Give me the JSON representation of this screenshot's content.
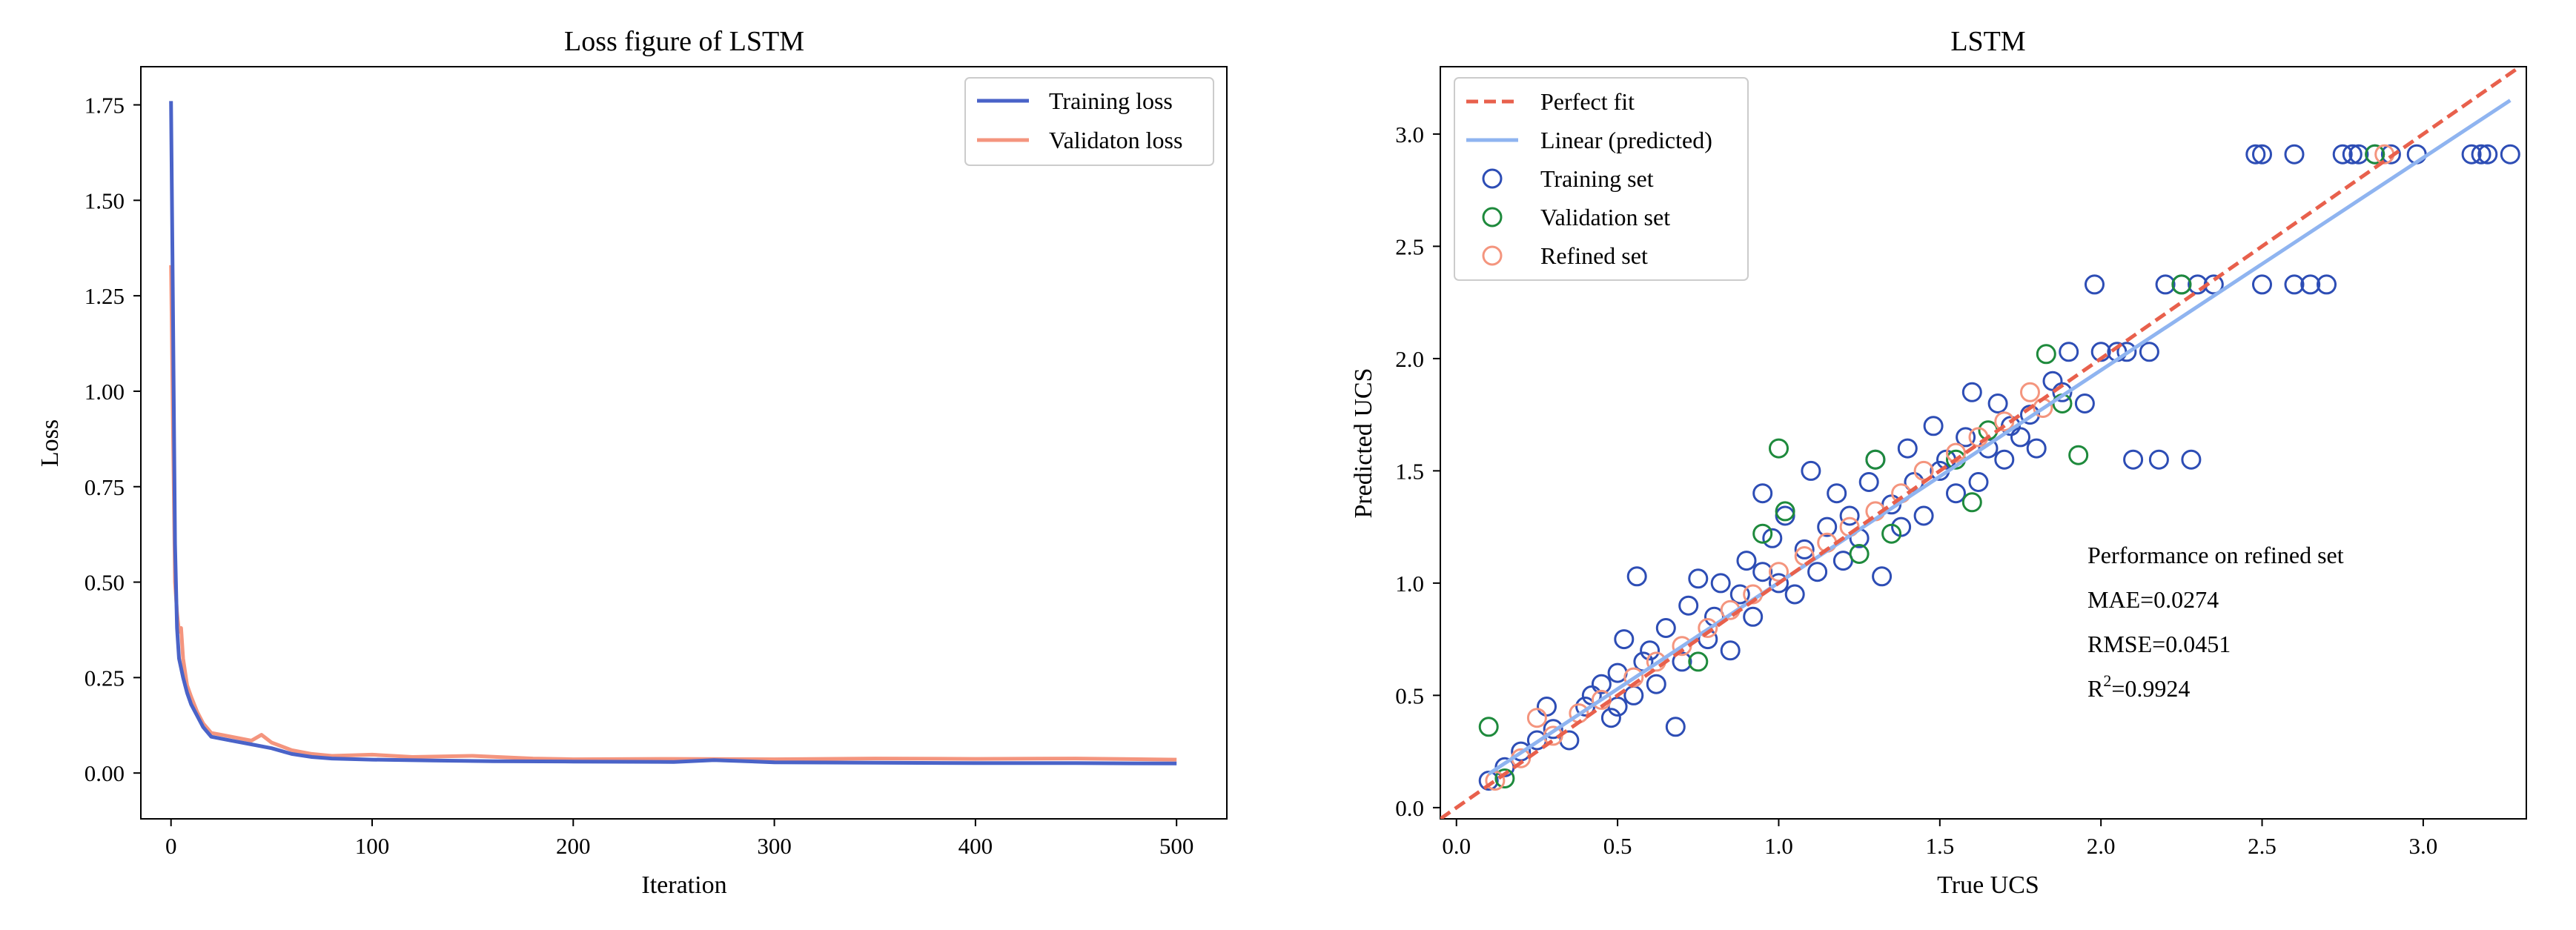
{
  "chart_data": [
    {
      "type": "line",
      "title": "Loss figure of LSTM",
      "xlabel": "Iteration",
      "ylabel": "Loss",
      "xlim": [
        -15,
        525
      ],
      "ylim": [
        -0.12,
        1.85
      ],
      "xticks": [
        0,
        100,
        200,
        300,
        400,
        500
      ],
      "xtick_labels": [
        "0",
        "100",
        "200",
        "300",
        "400",
        "500"
      ],
      "yticks": [
        0.0,
        0.25,
        0.5,
        0.75,
        1.0,
        1.25,
        1.5,
        1.75
      ],
      "ytick_labels": [
        "0.00",
        "0.25",
        "0.50",
        "0.75",
        "1.00",
        "1.25",
        "1.50",
        "1.75"
      ],
      "grid": false,
      "legend_position": "top-right",
      "series": [
        {
          "name": "Training loss",
          "color": "#4a63c8",
          "points": [
            [
              0,
              1.76
            ],
            [
              1,
              1.2
            ],
            [
              2,
              0.6
            ],
            [
              3,
              0.38
            ],
            [
              4,
              0.3
            ],
            [
              6,
              0.25
            ],
            [
              8,
              0.21
            ],
            [
              10,
              0.18
            ],
            [
              13,
              0.15
            ],
            [
              16,
              0.12
            ],
            [
              20,
              0.095
            ],
            [
              25,
              0.09
            ],
            [
              30,
              0.085
            ],
            [
              40,
              0.075
            ],
            [
              50,
              0.065
            ],
            [
              60,
              0.05
            ],
            [
              70,
              0.042
            ],
            [
              80,
              0.038
            ],
            [
              100,
              0.035
            ],
            [
              130,
              0.033
            ],
            [
              160,
              0.031
            ],
            [
              200,
              0.03
            ],
            [
              250,
              0.029
            ],
            [
              270,
              0.034
            ],
            [
              300,
              0.028
            ],
            [
              350,
              0.027
            ],
            [
              400,
              0.026
            ],
            [
              450,
              0.026
            ],
            [
              500,
              0.025
            ]
          ]
        },
        {
          "name": "Validaton loss",
          "color": "#f4957e",
          "points": [
            [
              0,
              1.33
            ],
            [
              1,
              0.9
            ],
            [
              2,
              0.5
            ],
            [
              3,
              0.42
            ],
            [
              4,
              0.37
            ],
            [
              5,
              0.38
            ],
            [
              6,
              0.3
            ],
            [
              8,
              0.23
            ],
            [
              10,
              0.2
            ],
            [
              13,
              0.16
            ],
            [
              16,
              0.13
            ],
            [
              20,
              0.105
            ],
            [
              25,
              0.1
            ],
            [
              30,
              0.095
            ],
            [
              40,
              0.085
            ],
            [
              45,
              0.1
            ],
            [
              50,
              0.08
            ],
            [
              60,
              0.06
            ],
            [
              70,
              0.05
            ],
            [
              80,
              0.045
            ],
            [
              100,
              0.048
            ],
            [
              120,
              0.042
            ],
            [
              150,
              0.045
            ],
            [
              180,
              0.038
            ],
            [
              200,
              0.036
            ],
            [
              250,
              0.037
            ],
            [
              300,
              0.036
            ],
            [
              350,
              0.038
            ],
            [
              400,
              0.037
            ],
            [
              450,
              0.038
            ],
            [
              500,
              0.035
            ]
          ]
        }
      ]
    },
    {
      "type": "scatter",
      "title": "LSTM",
      "xlabel": "True UCS",
      "ylabel": "Predicted UCS",
      "xlim": [
        -0.05,
        3.32
      ],
      "ylim": [
        -0.05,
        3.3
      ],
      "xticks": [
        0.0,
        0.5,
        1.0,
        1.5,
        2.0,
        2.5,
        3.0
      ],
      "xtick_labels": [
        "0.0",
        "0.5",
        "1.0",
        "1.5",
        "2.0",
        "2.5",
        "3.0"
      ],
      "yticks": [
        0.0,
        0.5,
        1.0,
        1.5,
        2.0,
        2.5,
        3.0
      ],
      "ytick_labels": [
        "0.0",
        "0.5",
        "1.0",
        "1.5",
        "2.0",
        "2.5",
        "3.0"
      ],
      "grid": false,
      "legend_position": "top-left",
      "lines": [
        {
          "name": "Perfect fit",
          "color": "#e8604c",
          "style": "dashed",
          "points": [
            [
              -0.05,
              -0.05
            ],
            [
              3.3,
              3.3
            ]
          ]
        },
        {
          "name": "Linear (predicted)",
          "color": "#8fb4f0",
          "style": "solid",
          "points": [
            [
              0.1,
              0.15
            ],
            [
              3.27,
              3.15
            ]
          ]
        }
      ],
      "series": [
        {
          "name": "Training set",
          "color": "#2d4db5",
          "marker": "open-circle",
          "points": [
            [
              0.1,
              0.12
            ],
            [
              0.15,
              0.18
            ],
            [
              0.2,
              0.25
            ],
            [
              0.25,
              0.3
            ],
            [
              0.28,
              0.45
            ],
            [
              0.3,
              0.35
            ],
            [
              0.35,
              0.3
            ],
            [
              0.4,
              0.45
            ],
            [
              0.42,
              0.5
            ],
            [
              0.45,
              0.55
            ],
            [
              0.48,
              0.4
            ],
            [
              0.5,
              0.6
            ],
            [
              0.5,
              0.45
            ],
            [
              0.52,
              0.75
            ],
            [
              0.55,
              0.5
            ],
            [
              0.56,
              1.03
            ],
            [
              0.58,
              0.65
            ],
            [
              0.6,
              0.7
            ],
            [
              0.62,
              0.55
            ],
            [
              0.65,
              0.8
            ],
            [
              0.68,
              0.36
            ],
            [
              0.7,
              0.65
            ],
            [
              0.72,
              0.9
            ],
            [
              0.75,
              1.02
            ],
            [
              0.78,
              0.75
            ],
            [
              0.8,
              0.85
            ],
            [
              0.82,
              1.0
            ],
            [
              0.85,
              0.7
            ],
            [
              0.88,
              0.95
            ],
            [
              0.9,
              1.1
            ],
            [
              0.92,
              0.85
            ],
            [
              0.95,
              1.05
            ],
            [
              0.95,
              1.4
            ],
            [
              0.98,
              1.2
            ],
            [
              1.0,
              1.0
            ],
            [
              1.02,
              1.3
            ],
            [
              1.05,
              0.95
            ],
            [
              1.08,
              1.15
            ],
            [
              1.1,
              1.5
            ],
            [
              1.12,
              1.05
            ],
            [
              1.15,
              1.25
            ],
            [
              1.18,
              1.4
            ],
            [
              1.2,
              1.1
            ],
            [
              1.22,
              1.3
            ],
            [
              1.25,
              1.2
            ],
            [
              1.28,
              1.45
            ],
            [
              1.3,
              1.55
            ],
            [
              1.32,
              1.03
            ],
            [
              1.35,
              1.35
            ],
            [
              1.38,
              1.25
            ],
            [
              1.4,
              1.6
            ],
            [
              1.42,
              1.45
            ],
            [
              1.45,
              1.3
            ],
            [
              1.48,
              1.7
            ],
            [
              1.5,
              1.5
            ],
            [
              1.52,
              1.55
            ],
            [
              1.55,
              1.4
            ],
            [
              1.58,
              1.65
            ],
            [
              1.6,
              1.85
            ],
            [
              1.62,
              1.45
            ],
            [
              1.65,
              1.6
            ],
            [
              1.68,
              1.8
            ],
            [
              1.7,
              1.55
            ],
            [
              1.72,
              1.7
            ],
            [
              1.75,
              1.65
            ],
            [
              1.78,
              1.75
            ],
            [
              1.8,
              1.6
            ],
            [
              1.85,
              1.9
            ],
            [
              1.88,
              1.85
            ],
            [
              1.9,
              2.03
            ],
            [
              1.95,
              1.8
            ],
            [
              1.98,
              2.33
            ],
            [
              2.0,
              2.03
            ],
            [
              2.05,
              2.03
            ],
            [
              2.08,
              2.03
            ],
            [
              2.1,
              1.55
            ],
            [
              2.15,
              2.03
            ],
            [
              2.18,
              1.55
            ],
            [
              2.2,
              2.33
            ],
            [
              2.25,
              2.33
            ],
            [
              2.28,
              1.55
            ],
            [
              2.3,
              2.33
            ],
            [
              2.35,
              2.33
            ],
            [
              2.48,
              2.91
            ],
            [
              2.5,
              2.91
            ],
            [
              2.5,
              2.33
            ],
            [
              2.6,
              2.91
            ],
            [
              2.6,
              2.33
            ],
            [
              2.65,
              2.33
            ],
            [
              2.7,
              2.33
            ],
            [
              2.75,
              2.91
            ],
            [
              2.78,
              2.91
            ],
            [
              2.8,
              2.91
            ],
            [
              2.85,
              2.91
            ],
            [
              2.9,
              2.91
            ],
            [
              2.98,
              2.91
            ],
            [
              3.15,
              2.91
            ],
            [
              3.18,
              2.91
            ],
            [
              3.2,
              2.91
            ],
            [
              3.27,
              2.91
            ]
          ]
        },
        {
          "name": "Validation set",
          "color": "#1e8a3c",
          "marker": "open-circle",
          "points": [
            [
              0.1,
              0.36
            ],
            [
              0.15,
              0.13
            ],
            [
              0.75,
              0.65
            ],
            [
              0.95,
              1.22
            ],
            [
              1.0,
              1.6
            ],
            [
              1.02,
              1.32
            ],
            [
              1.25,
              1.13
            ],
            [
              1.3,
              1.55
            ],
            [
              1.35,
              1.22
            ],
            [
              1.55,
              1.55
            ],
            [
              1.6,
              1.36
            ],
            [
              1.65,
              1.68
            ],
            [
              1.83,
              2.02
            ],
            [
              1.88,
              1.8
            ],
            [
              1.93,
              1.57
            ],
            [
              2.25,
              2.33
            ],
            [
              2.85,
              2.91
            ]
          ]
        },
        {
          "name": "Refined set",
          "color": "#f4957e",
          "marker": "open-circle",
          "points": [
            [
              0.12,
              0.12
            ],
            [
              0.2,
              0.22
            ],
            [
              0.25,
              0.4
            ],
            [
              0.3,
              0.32
            ],
            [
              0.38,
              0.42
            ],
            [
              0.45,
              0.48
            ],
            [
              0.55,
              0.58
            ],
            [
              0.62,
              0.65
            ],
            [
              0.7,
              0.72
            ],
            [
              0.78,
              0.8
            ],
            [
              0.85,
              0.88
            ],
            [
              0.92,
              0.95
            ],
            [
              1.0,
              1.05
            ],
            [
              1.08,
              1.12
            ],
            [
              1.15,
              1.18
            ],
            [
              1.22,
              1.25
            ],
            [
              1.3,
              1.32
            ],
            [
              1.38,
              1.4
            ],
            [
              1.45,
              1.5
            ],
            [
              1.55,
              1.58
            ],
            [
              1.62,
              1.65
            ],
            [
              1.7,
              1.72
            ],
            [
              1.78,
              1.85
            ],
            [
              1.82,
              1.78
            ],
            [
              2.88,
              2.91
            ]
          ]
        }
      ],
      "annotation": {
        "heading": "Performance on refined set",
        "mae": "MAE=0.0274",
        "rmse": "RMSE=0.0451",
        "r2_prefix": "R",
        "r2_sup": "2",
        "r2_value": "=0.9924"
      }
    }
  ]
}
